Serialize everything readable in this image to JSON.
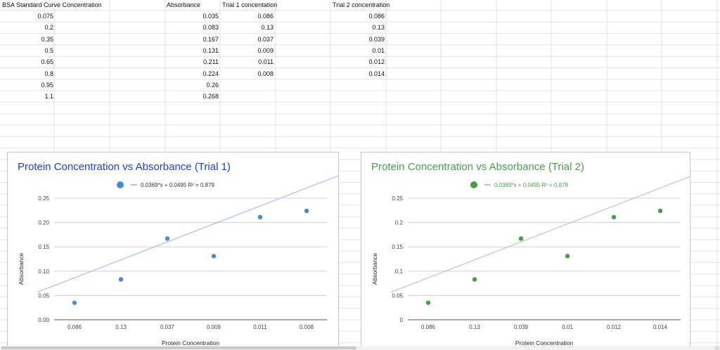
{
  "sheet": {
    "headers": {
      "bsa": "BSA Standard Curve Concentration",
      "absorbance": "Absorbance",
      "trial1": "Trial 1 concentation",
      "trial2": "Trial 2 concentration"
    },
    "bsa": [
      "0.075",
      "0.2",
      "0.35",
      "0.5",
      "0.65",
      "0.8",
      "0.95",
      "1.1"
    ],
    "absorbance": [
      "0.035",
      "0.083",
      "0.167",
      "0.131",
      "0.211",
      "0.224",
      "0.26",
      "0.268"
    ],
    "trial1": [
      "0.086",
      "0.13",
      "0.037",
      "0.009",
      "0.011",
      "0.008"
    ],
    "trial2": [
      "0.086",
      "0.13",
      "0.039",
      "0.01",
      "0.012",
      "0.014"
    ]
  },
  "chart_data": [
    {
      "type": "scatter",
      "title": "Protein Concentration vs Absorbance (Trial 1)",
      "xlabel": "Protein Concentration",
      "ylabel": "Absorbance",
      "legend": "0.0369*x + 0.0495 R² = 0.879",
      "categories": [
        "0.086",
        "0.13",
        "0.037",
        "0.009",
        "0.011",
        "0.008"
      ],
      "values": [
        0.035,
        0.083,
        0.167,
        0.131,
        0.211,
        0.224
      ],
      "yticks": [
        "0.00",
        "0.05",
        "0.10",
        "0.15",
        "0.20",
        "0.25"
      ],
      "ylim": [
        0,
        0.25
      ],
      "trendline": {
        "slope": 0.0369,
        "intercept": 0.0495
      },
      "color": "#4a86e8",
      "line_color": "#a4c2f4",
      "title_color": "#1c3fd1"
    },
    {
      "type": "scatter",
      "title": "Protein Concentration vs Absorbance (Trial 2)",
      "xlabel": "Protein Concentration",
      "ylabel": "Absorbance",
      "legend": "0.0369*x + 0.0495 R² = 0.879",
      "categories": [
        "0.086",
        "0.13",
        "0.039",
        "0.01",
        "0.012",
        "0.014"
      ],
      "values": [
        0.035,
        0.083,
        0.167,
        0.131,
        0.211,
        0.224
      ],
      "yticks": [
        "0",
        "0.05",
        "0.1",
        "0.15",
        "0.2",
        "0.25"
      ],
      "ylim": [
        0,
        0.25
      ],
      "trendline": {
        "slope": 0.0369,
        "intercept": 0.0495
      },
      "color": "#43a047",
      "line_color": "#a8d5a2",
      "title_color": "#43a047"
    }
  ]
}
